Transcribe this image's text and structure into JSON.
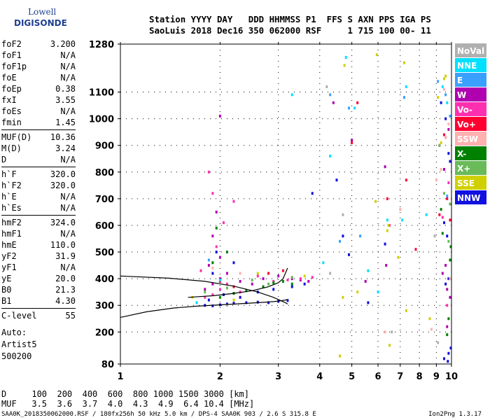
{
  "logo": {
    "line1": "Lowell",
    "line2": "DIGISONDE"
  },
  "header": {
    "line1": "Station YYYY DAY   DDD HHMMSS P1  FFS S AXN PPS IGA PS",
    "line2": "SaoLuis 2018 Dec16 350 062000 RSF     1 715 100 00- 11"
  },
  "params": {
    "group1": [
      {
        "label": "foF2",
        "value": "3.200"
      },
      {
        "label": "foF1",
        "value": "N/A"
      },
      {
        "label": "foF1p",
        "value": "N/A"
      },
      {
        "label": "foE",
        "value": "N/A"
      },
      {
        "label": "foEp",
        "value": "0.38"
      },
      {
        "label": "fxI",
        "value": "3.55"
      },
      {
        "label": "foEs",
        "value": "N/A"
      },
      {
        "label": "fmin",
        "value": "1.45"
      }
    ],
    "group2": [
      {
        "label": "MUF(D)",
        "value": "10.36"
      },
      {
        "label": "M(D)",
        "value": "3.24"
      },
      {
        "label": "D",
        "value": "N/A"
      }
    ],
    "group3": [
      {
        "label": "h`F",
        "value": "320.0"
      },
      {
        "label": "h`F2",
        "value": "320.0"
      },
      {
        "label": "h`E",
        "value": "N/A"
      },
      {
        "label": "h`Es",
        "value": "N/A"
      }
    ],
    "group4": [
      {
        "label": "hmF2",
        "value": "324.0"
      },
      {
        "label": "hmF1",
        "value": "N/A"
      },
      {
        "label": "hmE",
        "value": "110.0"
      },
      {
        "label": "yF2",
        "value": "31.9"
      },
      {
        "label": "yF1",
        "value": "N/A"
      },
      {
        "label": "yE",
        "value": "20.0"
      },
      {
        "label": "B0",
        "value": "21.3"
      },
      {
        "label": "B1",
        "value": "4.30"
      }
    ],
    "group5": [
      {
        "label": "C-level",
        "value": "55"
      }
    ]
  },
  "auto": {
    "line1": "Auto:",
    "line2": "Artist5",
    "line3": "500200"
  },
  "footer": {
    "line1": "D     100  200  400  600  800 1000 1500 3000 [km]",
    "line2": "MUF   3.5  3.6  3.7  4.0  4.3  4.9  6.4 10.4 [MHz]",
    "filename": "SAA0K_2018350062000.RSF / 180fx256h 50 kHz 5.0 km / DPS-4 SAA0K 903 / 2.6 S 315.8 E",
    "version": "Ion2Png 1.3.17"
  },
  "chart_data": {
    "type": "scatter",
    "x_scale": "log",
    "xlim": [
      1,
      10
    ],
    "ylim": [
      80,
      1280
    ],
    "x_ticks": [
      "1",
      "2",
      "3",
      "4",
      "5",
      "6",
      "7",
      "8",
      "9",
      "10"
    ],
    "y_ticks": [
      "1280",
      "1100",
      "1000",
      "900",
      "800",
      "700",
      "600",
      "500",
      "400",
      "300",
      "200",
      "80"
    ],
    "legend_position": "right",
    "legend": [
      {
        "name": "NoVal",
        "color": "#b0b0b0"
      },
      {
        "name": "NNE",
        "color": "#00e0ff"
      },
      {
        "name": "E",
        "color": "#3aa0ff"
      },
      {
        "name": "W",
        "color": "#b000b0"
      },
      {
        "name": "Vo-",
        "color": "#ff30b0"
      },
      {
        "name": "Vo+",
        "color": "#ff0030"
      },
      {
        "name": "SSW",
        "color": "#ffb0b0"
      },
      {
        "name": "X-",
        "color": "#008000"
      },
      {
        "name": "X+",
        "color": "#6aba5a"
      },
      {
        "name": "SSE",
        "color": "#d0d000"
      },
      {
        "name": "NNW",
        "color": "#1010e0"
      }
    ],
    "series": [
      {
        "name": "NNW",
        "points": [
          [
            1.8,
            300
          ],
          [
            1.9,
            298
          ],
          [
            2.0,
            302
          ],
          [
            2.1,
            305
          ],
          [
            2.2,
            308
          ],
          [
            2.4,
            310
          ],
          [
            2.6,
            312
          ],
          [
            2.8,
            310
          ],
          [
            3.0,
            315
          ],
          [
            3.2,
            318
          ],
          [
            1.85,
            320
          ],
          [
            2.05,
            340
          ],
          [
            2.3,
            330
          ],
          [
            2.6,
            350
          ],
          [
            2.9,
            360
          ],
          [
            3.3,
            370
          ],
          [
            3.6,
            380
          ],
          [
            1.9,
            420
          ],
          [
            2.2,
            460
          ],
          [
            1.95,
            500
          ],
          [
            3.8,
            720
          ],
          [
            4.5,
            770
          ],
          [
            4.7,
            560
          ],
          [
            4.9,
            490
          ],
          [
            5.6,
            310
          ],
          [
            6.3,
            530
          ],
          [
            9.3,
            1060
          ],
          [
            9.6,
            1000
          ],
          [
            9.8,
            870
          ],
          [
            9.9,
            840
          ],
          [
            9.5,
            610
          ],
          [
            9.7,
            560
          ],
          [
            9.8,
            400
          ],
          [
            9.6,
            380
          ],
          [
            9.8,
            120
          ],
          [
            9.95,
            140
          ],
          [
            9.5,
            100
          ],
          [
            9.75,
            90
          ]
        ]
      },
      {
        "name": "W",
        "points": [
          [
            1.8,
            360
          ],
          [
            1.9,
            380
          ],
          [
            2.0,
            400
          ],
          [
            2.1,
            420
          ],
          [
            2.3,
            390
          ],
          [
            2.5,
            380
          ],
          [
            2.7,
            400
          ],
          [
            3.0,
            410
          ],
          [
            3.3,
            400
          ],
          [
            3.5,
            395
          ],
          [
            3.7,
            390
          ],
          [
            1.85,
            450
          ],
          [
            2.0,
            480
          ],
          [
            1.9,
            560
          ],
          [
            1.95,
            650
          ],
          [
            2.0,
            1010
          ],
          [
            4.4,
            1060
          ],
          [
            5.0,
            920
          ],
          [
            5.5,
            390
          ],
          [
            6.3,
            820
          ],
          [
            6.35,
            450
          ],
          [
            9.4,
            420
          ],
          [
            9.6,
            450
          ],
          [
            9.8,
            960
          ],
          [
            9.5,
            810
          ],
          [
            9.7,
            360
          ],
          [
            9.9,
            330
          ],
          [
            9.7,
            220
          ]
        ]
      },
      {
        "name": "Vo-",
        "points": [
          [
            1.8,
            330
          ],
          [
            1.9,
            340
          ],
          [
            2.0,
            360
          ],
          [
            2.1,
            380
          ],
          [
            2.3,
            350
          ],
          [
            2.6,
            410
          ],
          [
            2.9,
            390
          ],
          [
            3.2,
            395
          ],
          [
            3.5,
            400
          ],
          [
            3.8,
            405
          ],
          [
            1.75,
            430
          ],
          [
            1.95,
            520
          ],
          [
            2.05,
            610
          ],
          [
            1.9,
            720
          ],
          [
            2.2,
            690
          ],
          [
            1.85,
            800
          ],
          [
            6.5,
            600
          ],
          [
            9.2,
            900
          ],
          [
            9.6,
            930
          ],
          [
            9.8,
            760
          ],
          [
            9.9,
            680
          ],
          [
            9.4,
            630
          ],
          [
            9.7,
            300
          ]
        ]
      },
      {
        "name": "Vo+",
        "points": [
          [
            2.0,
            390
          ],
          [
            2.2,
            370
          ],
          [
            2.8,
            420
          ],
          [
            3.1,
            430
          ],
          [
            5.0,
            910
          ],
          [
            5.2,
            1060
          ],
          [
            6.4,
            700
          ],
          [
            7.3,
            770
          ],
          [
            7.8,
            510
          ],
          [
            9.2,
            640
          ],
          [
            9.5,
            940
          ],
          [
            9.7,
            700
          ],
          [
            9.9,
            620
          ]
        ]
      },
      {
        "name": "X-",
        "points": [
          [
            1.7,
            310
          ],
          [
            2.0,
            330
          ],
          [
            2.2,
            345
          ],
          [
            2.4,
            355
          ],
          [
            2.7,
            370
          ],
          [
            2.9,
            385
          ],
          [
            3.1,
            390
          ],
          [
            3.3,
            380
          ],
          [
            1.9,
            460
          ],
          [
            2.1,
            500
          ],
          [
            1.95,
            590
          ],
          [
            9.4,
            570
          ],
          [
            9.7,
            190
          ],
          [
            9.8,
            250
          ],
          [
            9.95,
            520
          ],
          [
            9.9,
            470
          ],
          [
            9.3,
            660
          ]
        ]
      },
      {
        "name": "X+",
        "points": [
          [
            1.8,
            350
          ],
          [
            2.1,
            365
          ],
          [
            2.5,
            395
          ],
          [
            2.8,
            380
          ],
          [
            3.3,
            405
          ],
          [
            9.2,
            900
          ],
          [
            9.5,
            720
          ],
          [
            9.8,
            540
          ],
          [
            9.9,
            680
          ]
        ]
      },
      {
        "name": "SSE",
        "points": [
          [
            1.65,
            330
          ],
          [
            2.2,
            320
          ],
          [
            2.6,
            420
          ],
          [
            3.6,
            410
          ],
          [
            4.6,
            110
          ],
          [
            4.7,
            330
          ],
          [
            4.75,
            1200
          ],
          [
            5.2,
            350
          ],
          [
            5.9,
            690
          ],
          [
            5.95,
            1240
          ],
          [
            6.4,
            580
          ],
          [
            6.45,
            600
          ],
          [
            6.5,
            150
          ],
          [
            6.9,
            480
          ],
          [
            7.2,
            1210
          ],
          [
            7.3,
            280
          ],
          [
            8.6,
            250
          ],
          [
            9.1,
            1080
          ],
          [
            9.3,
            910
          ],
          [
            9.5,
            1150
          ],
          [
            9.6,
            1160
          ]
        ]
      },
      {
        "name": "SSW",
        "points": [
          [
            1.9,
            440
          ],
          [
            2.3,
            420
          ],
          [
            6.3,
            200
          ],
          [
            7.0,
            660
          ],
          [
            8.7,
            210
          ],
          [
            9.0,
            770
          ],
          [
            9.3,
            810
          ],
          [
            9.5,
            1110
          ],
          [
            9.6,
            930
          ],
          [
            9.8,
            980
          ],
          [
            9.9,
            400
          ]
        ]
      },
      {
        "name": "NNE",
        "points": [
          [
            1.7,
            310
          ],
          [
            2.0,
            395
          ],
          [
            3.3,
            1090
          ],
          [
            4.1,
            460
          ],
          [
            4.3,
            860
          ],
          [
            4.8,
            1230
          ],
          [
            5.1,
            1040
          ],
          [
            5.6,
            430
          ],
          [
            6.0,
            350
          ],
          [
            6.4,
            620
          ],
          [
            7.1,
            620
          ],
          [
            7.3,
            1120
          ],
          [
            8.4,
            640
          ],
          [
            9.4,
            1120
          ],
          [
            9.7,
            1060
          ]
        ]
      },
      {
        "name": "E",
        "points": [
          [
            1.85,
            470
          ],
          [
            4.3,
            1090
          ],
          [
            4.6,
            540
          ],
          [
            4.9,
            1040
          ],
          [
            5.3,
            560
          ],
          [
            7.2,
            1080
          ],
          [
            9.1,
            1140
          ],
          [
            9.6,
            1090
          ],
          [
            9.9,
            1010
          ],
          [
            9.7,
            710
          ]
        ]
      },
      {
        "name": "NoVal",
        "points": [
          [
            2.1,
            300
          ],
          [
            4.2,
            1120
          ],
          [
            4.3,
            420
          ],
          [
            4.7,
            640
          ],
          [
            6.6,
            200
          ],
          [
            8.9,
            560
          ],
          [
            9.1,
            160
          ]
        ]
      }
    ],
    "curves": {
      "virtual_height_trace": {
        "x": [
          1.0,
          1.2,
          1.45,
          1.7,
          2.0,
          2.3,
          2.6,
          2.9,
          3.05,
          3.15,
          3.2
        ],
        "y": [
          255,
          276,
          290,
          297,
          302,
          306,
          310,
          314,
          317,
          320,
          322
        ]
      },
      "o_trace_upper": {
        "x": [
          1.6,
          1.9,
          2.2,
          2.5,
          2.8,
          3.0,
          3.1,
          3.2
        ],
        "y": [
          330,
          336,
          345,
          355,
          370,
          385,
          400,
          440
        ]
      },
      "profile": {
        "x": [
          1.0,
          1.4,
          1.8,
          2.2,
          2.6,
          2.9,
          3.05,
          3.15,
          3.2
        ],
        "y": [
          410,
          402,
          390,
          372,
          350,
          330,
          318,
          310,
          305
        ]
      }
    }
  }
}
